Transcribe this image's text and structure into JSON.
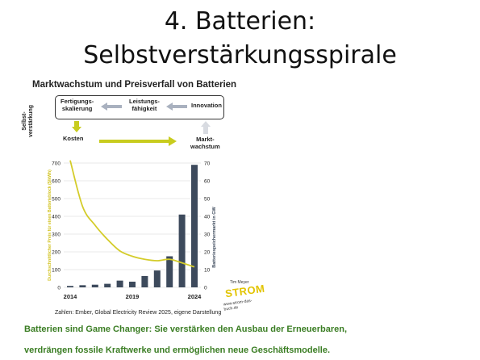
{
  "slide": {
    "title_line1": "4. Batterien:",
    "title_line2": "Selbstverstärkungsspirale"
  },
  "figure": {
    "title": "Marktwachstum und Preisverfall von Batterien",
    "side_label_line1": "Selbst-",
    "side_label_line2": "verstärkung",
    "box_items": [
      {
        "line1": "Fertigungs-",
        "line2": "skalierung"
      },
      {
        "line1": "Leistungs-",
        "line2": "fähigkeit"
      },
      {
        "line1": "Innovation",
        "line2": ""
      }
    ],
    "kosten_label": "Kosten",
    "markt_line1": "Markt-",
    "markt_line2": "wachstum",
    "source": "Zahlen: Ember, Global Electricity Review 2025, eigene Darstellung",
    "logo": {
      "author": "Tim Meyer",
      "word": "STROM",
      "url": "www.strom-das-buch.de"
    },
    "colors": {
      "bars": "#3d4a5c",
      "curve": "#d4cc2a",
      "arrows_grey": "#a9b1bf",
      "arrows_yellow": "#c8cc1e",
      "left_axis_text": "#d1c21f",
      "right_axis_text": "#3d4a5c"
    }
  },
  "chart_data": {
    "type": "bar",
    "x": [
      2014,
      2015,
      2016,
      2017,
      2018,
      2019,
      2020,
      2021,
      2022,
      2023,
      2024
    ],
    "x_tick_labels": [
      "2014",
      "2019",
      "2024"
    ],
    "series": [
      {
        "name": "Batteriespeichermarkt in GW",
        "axis": "right",
        "type": "bar",
        "values": [
          0.8,
          1.2,
          1.5,
          2.0,
          3.8,
          3.2,
          6.4,
          9.5,
          17.5,
          41,
          69
        ]
      },
      {
        "name": "Durchschnittlicher Preis für einen Batterieblock ($/kWh)",
        "axis": "left",
        "type": "line",
        "values": [
          715,
          455,
          350,
          270,
          205,
          175,
          158,
          150,
          158,
          138,
          115
        ]
      }
    ],
    "ylabel_left": "Durchschnittlicher Preis für einen Batterieblock ($/kWh)",
    "ylabel_right": "Batteriespeichermarkt in GW",
    "ylim_left": [
      0,
      700
    ],
    "ylim_right": [
      0,
      70
    ],
    "yticks_left": [
      "0",
      "100",
      "200",
      "300",
      "400",
      "500",
      "600",
      "700"
    ],
    "yticks_right": [
      "0",
      "10",
      "20",
      "30",
      "40",
      "50",
      "60",
      "70"
    ],
    "grid": true
  },
  "caption": {
    "line1": "Batterien sind Game Changer: Sie verstärken den Ausbau der Erneuerbaren,",
    "line2": "verdrängen fossile Kraftwerke und ermöglichen neue Geschäftsmodelle."
  }
}
